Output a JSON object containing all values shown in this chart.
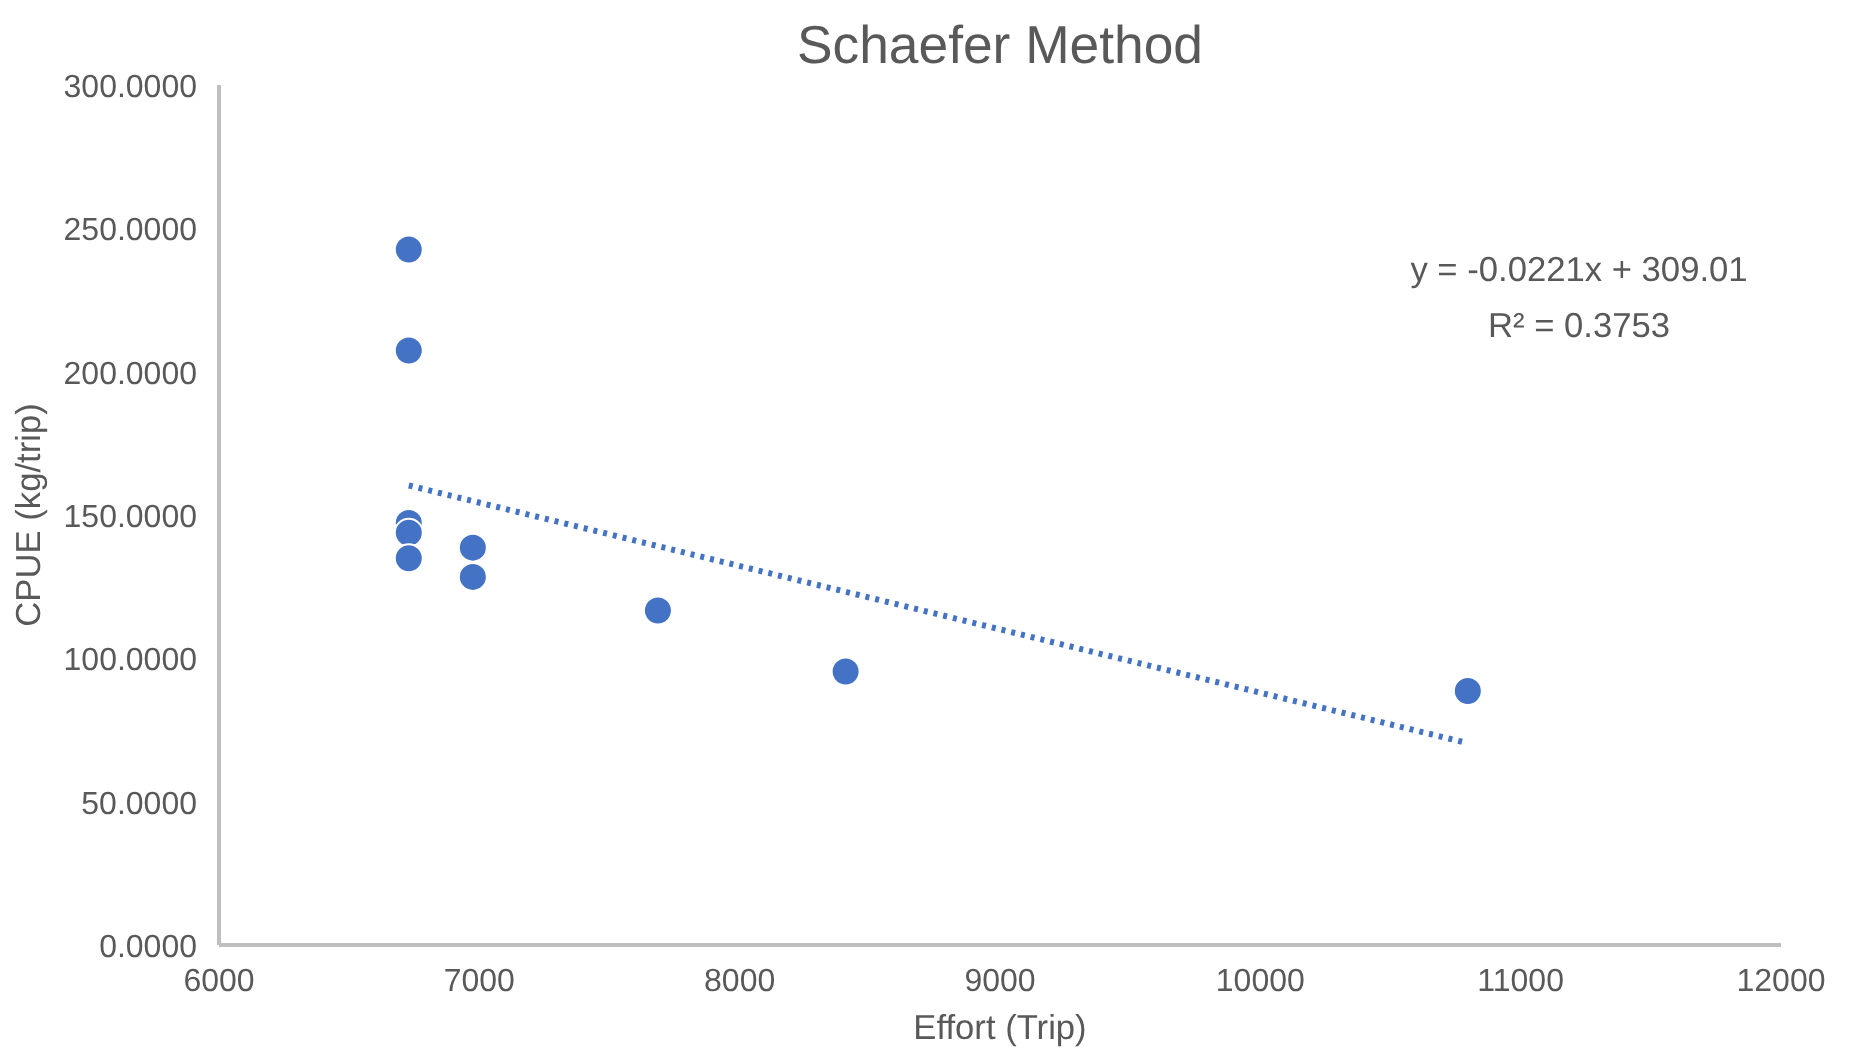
{
  "chart_data": {
    "type": "scatter",
    "title": "Schaefer Method",
    "xlabel": "Effort (Trip)",
    "ylabel": "CPUE (kg/trip)",
    "xlim": [
      6000,
      12000
    ],
    "xticks": [
      6000,
      7000,
      8000,
      9000,
      10000,
      11000,
      12000
    ],
    "ylim": [
      0,
      300
    ],
    "yticks": [
      {
        "value": 0,
        "label": "0.0000"
      },
      {
        "value": 50,
        "label": "50.0000"
      },
      {
        "value": 100,
        "label": "100.0000"
      },
      {
        "value": 150,
        "label": "150.0000"
      },
      {
        "value": 200,
        "label": "200.0000"
      },
      {
        "value": 250,
        "label": "250.0000"
      },
      {
        "value": 300,
        "label": "300.0000"
      }
    ],
    "grid": false,
    "marker": "circle",
    "series": [
      {
        "color": "#4472c4",
        "x": [
          6729,
          6729,
          6729,
          6729,
          6729,
          6975,
          6975,
          7686,
          8407,
          10797
        ],
        "values": [
          242.6,
          207.4,
          147.2,
          143.8,
          134.9,
          138.6,
          128.4,
          116.7,
          95.4,
          88.6
        ]
      },
      {
        "type": "line",
        "color": "#4472c4",
        "line_style": "dotted",
        "marker": "none",
        "x": [
          6729,
          10797
        ],
        "values": [
          160.3,
          70.4
        ]
      }
    ],
    "annotations": [
      "y = -0.0221x + 309.01\nR² = 0.3753"
    ]
  }
}
